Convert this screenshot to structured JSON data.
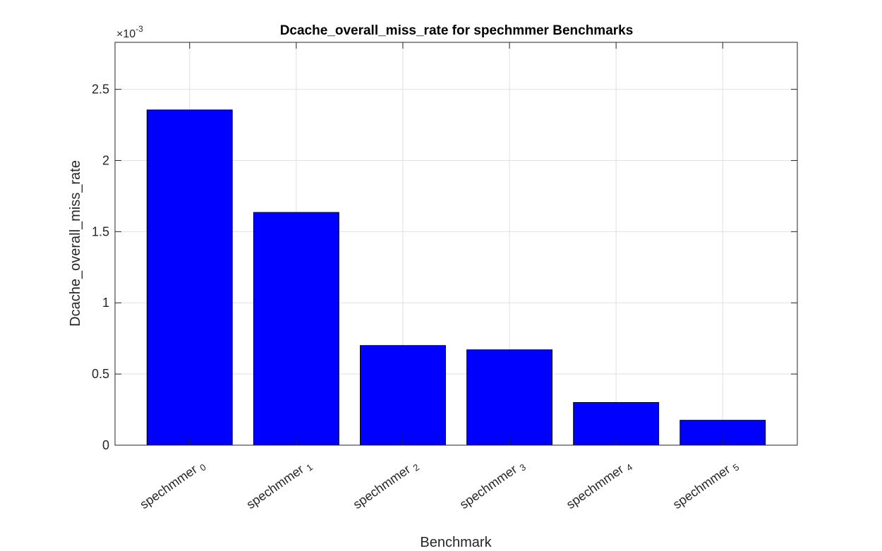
{
  "chart_data": {
    "type": "bar",
    "title": "Dcache_overall_miss_rate for spechmmer Benchmarks",
    "xlabel": "Benchmark",
    "ylabel": "Dcache_overall_miss_rate",
    "y_exponent_base": "×10",
    "y_exponent_power": "-3",
    "categories": [
      {
        "base": "spechmmer",
        "sub": "0"
      },
      {
        "base": "spechmmer",
        "sub": "1"
      },
      {
        "base": "spechmmer",
        "sub": "2"
      },
      {
        "base": "spechmmer",
        "sub": "3"
      },
      {
        "base": "spechmmer",
        "sub": "4"
      },
      {
        "base": "spechmmer",
        "sub": "5"
      }
    ],
    "values": [
      0.002355,
      0.001635,
      0.0007,
      0.00067,
      0.0003,
      0.000175
    ],
    "ylim": [
      0,
      0.00283
    ],
    "xlim": [
      0.3,
      6.7
    ],
    "yticks": [
      0,
      0.0005,
      0.001,
      0.0015,
      0.002,
      0.0025
    ],
    "ytick_labels": [
      "0",
      "0.5",
      "1",
      "1.5",
      "2",
      "2.5"
    ],
    "grid": true,
    "colors": {
      "bar_fill": "#0000ff",
      "bar_edge": "#000000",
      "grid": "#e0e0e0",
      "axis": "#262626"
    }
  }
}
